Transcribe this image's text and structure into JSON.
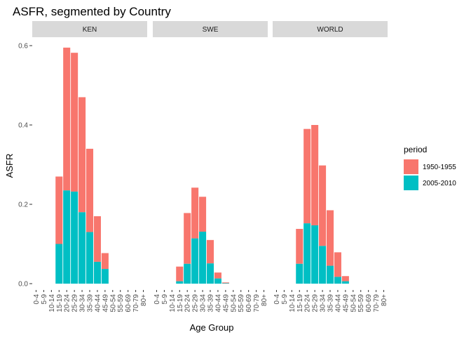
{
  "chart_data": {
    "type": "bar",
    "title": "ASFR, segmented by Country",
    "xlabel": "Age Group",
    "ylabel": "ASFR",
    "ylim": [
      0,
      0.62
    ],
    "yticks": [
      0.0,
      0.2,
      0.4,
      0.6
    ],
    "ytick_labels": [
      "0.0",
      "0.2",
      "0.4",
      "0.6"
    ],
    "stacked": true,
    "grid": false,
    "legend_position": "right",
    "legend_title": "period",
    "categories": [
      "0-4",
      "5-9",
      "10-14",
      "15-19",
      "20-24",
      "25-29",
      "30-34",
      "35-39",
      "40-44",
      "45-49",
      "50-54",
      "55-59",
      "60-69",
      "70-79",
      "80+"
    ],
    "series": [
      {
        "name": "1950-1955",
        "color": "#F8766D"
      },
      {
        "name": "2005-2010",
        "color": "#00BFC4"
      }
    ],
    "panels": [
      {
        "label": "KEN",
        "values": {
          "1950-1955": [
            0,
            0,
            0,
            0.17,
            0.36,
            0.35,
            0.29,
            0.21,
            0.115,
            0.04,
            0,
            0,
            0,
            0,
            0
          ],
          "2005-2010": [
            0,
            0,
            0,
            0.1,
            0.235,
            0.232,
            0.18,
            0.13,
            0.055,
            0.037,
            0,
            0,
            0,
            0,
            0
          ]
        }
      },
      {
        "label": "SWE",
        "values": {
          "1950-1955": [
            0,
            0,
            0,
            0.037,
            0.128,
            0.128,
            0.088,
            0.059,
            0.015,
            0.002,
            0,
            0,
            0,
            0,
            0
          ],
          "2005-2010": [
            0,
            0,
            0,
            0.006,
            0.05,
            0.114,
            0.131,
            0.051,
            0.013,
            0.001,
            0,
            0,
            0,
            0,
            0
          ]
        }
      },
      {
        "label": "WORLD",
        "values": {
          "1950-1955": [
            0,
            0,
            0,
            0.088,
            0.238,
            0.253,
            0.203,
            0.14,
            0.062,
            0.013,
            0,
            0,
            0,
            0,
            0
          ],
          "2005-2010": [
            0,
            0,
            0,
            0.05,
            0.152,
            0.147,
            0.095,
            0.045,
            0.017,
            0.006,
            0,
            0,
            0,
            0,
            0
          ]
        }
      }
    ]
  }
}
